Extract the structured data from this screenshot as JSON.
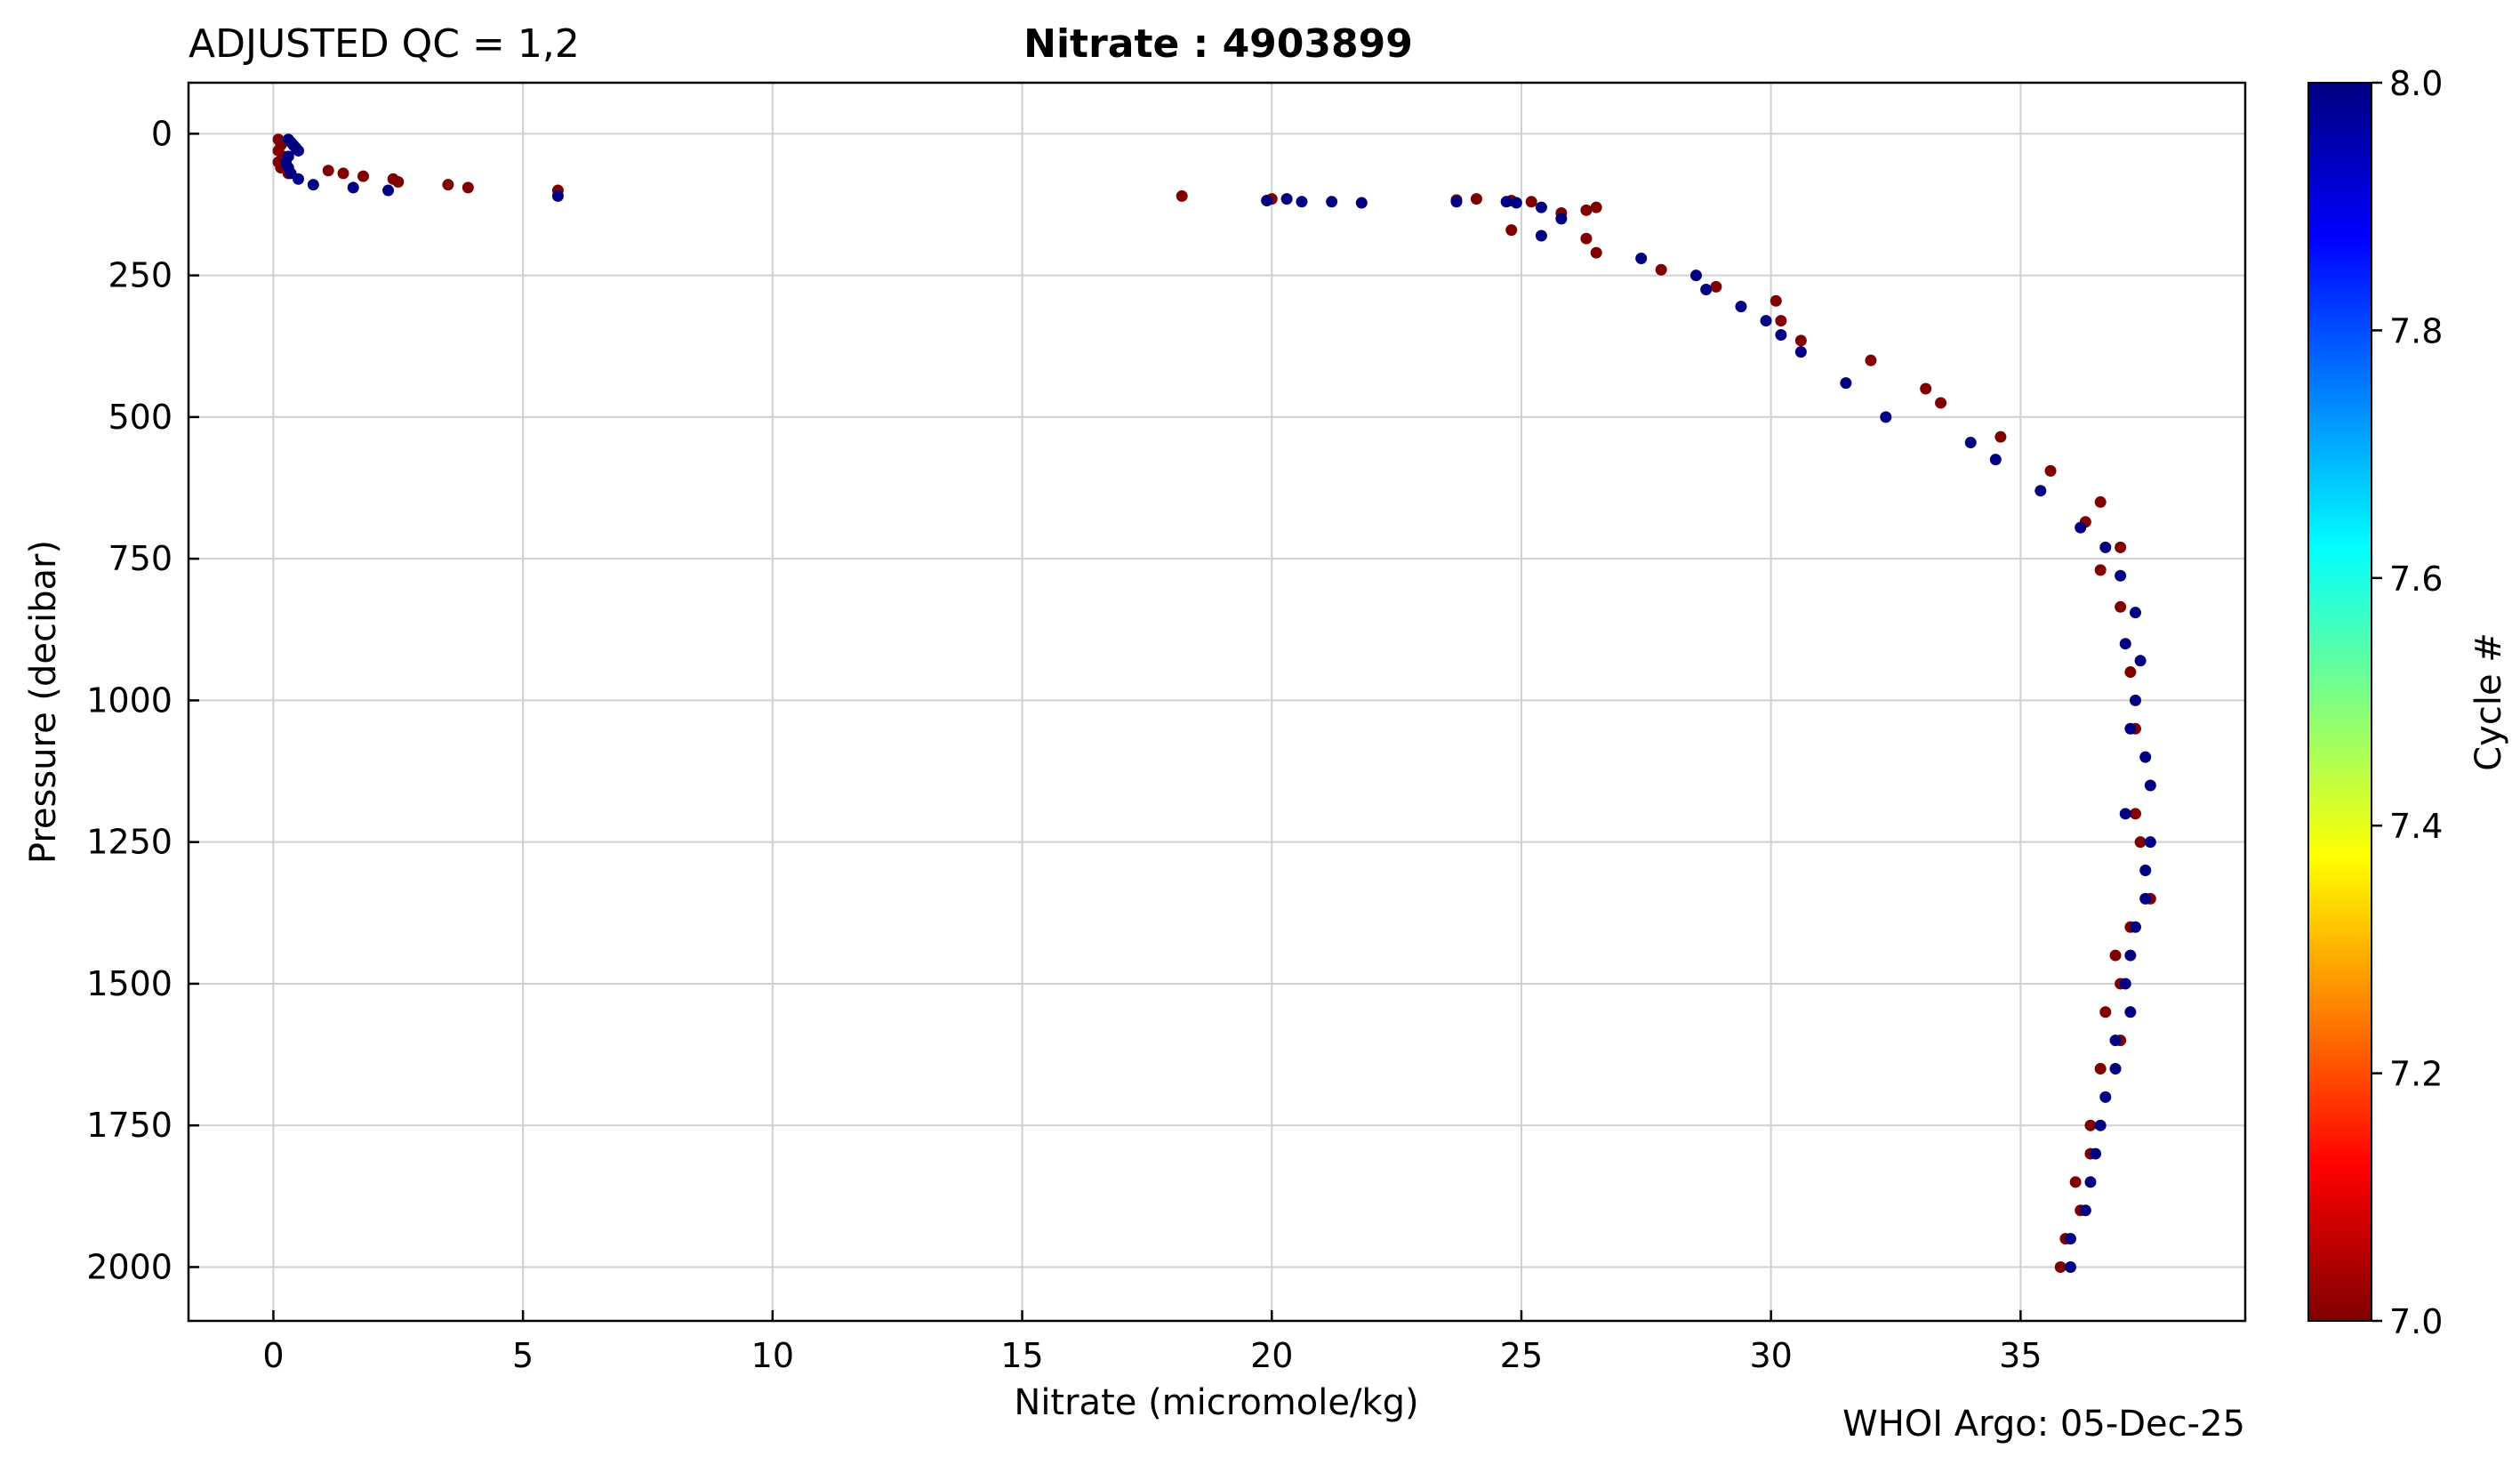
{
  "chart_data": {
    "type": "scatter",
    "title_left": "ADJUSTED QC = 1,2",
    "title_center": "Nitrate : 4903899",
    "xlabel": "Nitrate  (micromole/kg)",
    "ylabel": "Pressure  (decibar)",
    "footer": "WHOI Argo: 05-Dec-25",
    "xlim": [
      -1.7,
      39.5
    ],
    "ylim": [
      2095,
      -90
    ],
    "y_inverted": true,
    "grid": true,
    "xticks": [
      0,
      5,
      10,
      15,
      20,
      25,
      30,
      35
    ],
    "yticks": [
      0,
      250,
      500,
      750,
      1000,
      1250,
      1500,
      1750,
      2000
    ],
    "colorbar": {
      "label": "Cycle #",
      "range": [
        7.0,
        8.0
      ],
      "ticks": [
        "7.0",
        "7.2",
        "7.4",
        "7.6",
        "7.8",
        "8.0"
      ],
      "colormap": "jet",
      "cmap_colors": [
        "#800000",
        "#ff0000",
        "#ff8000",
        "#ffff00",
        "#80ff80",
        "#00ffff",
        "#0080ff",
        "#0000ff",
        "#000080"
      ]
    },
    "series": [
      {
        "cycle": 7,
        "color": "#800000",
        "points": [
          [
            0.1,
            10
          ],
          [
            0.15,
            20
          ],
          [
            0.1,
            30
          ],
          [
            0.2,
            40
          ],
          [
            0.1,
            50
          ],
          [
            0.15,
            60
          ],
          [
            0.3,
            70
          ],
          [
            1.1,
            65
          ],
          [
            1.4,
            70
          ],
          [
            1.8,
            75
          ],
          [
            2.4,
            80
          ],
          [
            2.5,
            85
          ],
          [
            3.5,
            90
          ],
          [
            3.9,
            95
          ],
          [
            5.7,
            100
          ],
          [
            18.2,
            110
          ],
          [
            20.0,
            115
          ],
          [
            24.1,
            115
          ],
          [
            23.7,
            117
          ],
          [
            24.8,
            118
          ],
          [
            25.2,
            120
          ],
          [
            26.5,
            130
          ],
          [
            26.3,
            135
          ],
          [
            25.8,
            140
          ],
          [
            24.8,
            170
          ],
          [
            26.3,
            185
          ],
          [
            26.5,
            210
          ],
          [
            27.8,
            240
          ],
          [
            28.9,
            270
          ],
          [
            30.1,
            295
          ],
          [
            30.2,
            330
          ],
          [
            30.6,
            365
          ],
          [
            32.0,
            400
          ],
          [
            33.1,
            450
          ],
          [
            33.4,
            475
          ],
          [
            34.6,
            535
          ],
          [
            35.6,
            595
          ],
          [
            36.6,
            650
          ],
          [
            36.3,
            685
          ],
          [
            37.0,
            730
          ],
          [
            36.6,
            770
          ],
          [
            37.0,
            835
          ],
          [
            37.2,
            950
          ],
          [
            37.3,
            1050
          ],
          [
            37.3,
            1200
          ],
          [
            37.4,
            1250
          ],
          [
            37.6,
            1350
          ],
          [
            37.2,
            1400
          ],
          [
            36.9,
            1450
          ],
          [
            37.0,
            1500
          ],
          [
            36.7,
            1550
          ],
          [
            37.0,
            1600
          ],
          [
            36.6,
            1650
          ],
          [
            36.4,
            1750
          ],
          [
            36.4,
            1800
          ],
          [
            36.1,
            1850
          ],
          [
            36.2,
            1900
          ],
          [
            35.9,
            1950
          ],
          [
            35.8,
            2000
          ]
        ]
      },
      {
        "cycle": 8,
        "color": "#000080",
        "points": [
          [
            0.3,
            10
          ],
          [
            0.35,
            15
          ],
          [
            0.4,
            20
          ],
          [
            0.45,
            25
          ],
          [
            0.5,
            30
          ],
          [
            0.3,
            40
          ],
          [
            0.25,
            50
          ],
          [
            0.3,
            60
          ],
          [
            0.35,
            70
          ],
          [
            0.5,
            80
          ],
          [
            0.8,
            90
          ],
          [
            1.6,
            95
          ],
          [
            2.3,
            100
          ],
          [
            5.7,
            110
          ],
          [
            19.9,
            118
          ],
          [
            20.3,
            115
          ],
          [
            20.6,
            120
          ],
          [
            21.2,
            120
          ],
          [
            21.8,
            122
          ],
          [
            23.7,
            120
          ],
          [
            24.7,
            120
          ],
          [
            24.9,
            122
          ],
          [
            25.4,
            130
          ],
          [
            25.8,
            150
          ],
          [
            25.4,
            180
          ],
          [
            27.4,
            220
          ],
          [
            28.5,
            250
          ],
          [
            28.7,
            275
          ],
          [
            29.4,
            305
          ],
          [
            29.9,
            330
          ],
          [
            30.2,
            355
          ],
          [
            30.6,
            385
          ],
          [
            31.5,
            440
          ],
          [
            32.3,
            500
          ],
          [
            34.0,
            545
          ],
          [
            34.5,
            575
          ],
          [
            35.4,
            630
          ],
          [
            36.2,
            695
          ],
          [
            36.7,
            730
          ],
          [
            37.0,
            780
          ],
          [
            37.3,
            845
          ],
          [
            37.1,
            900
          ],
          [
            37.4,
            930
          ],
          [
            37.3,
            1000
          ],
          [
            37.2,
            1050
          ],
          [
            37.5,
            1100
          ],
          [
            37.6,
            1150
          ],
          [
            37.1,
            1200
          ],
          [
            37.6,
            1250
          ],
          [
            37.5,
            1300
          ],
          [
            37.5,
            1350
          ],
          [
            37.3,
            1400
          ],
          [
            37.2,
            1450
          ],
          [
            37.1,
            1500
          ],
          [
            37.2,
            1550
          ],
          [
            36.9,
            1600
          ],
          [
            36.9,
            1650
          ],
          [
            36.7,
            1700
          ],
          [
            36.6,
            1750
          ],
          [
            36.5,
            1800
          ],
          [
            36.4,
            1850
          ],
          [
            36.3,
            1900
          ],
          [
            36.0,
            1950
          ],
          [
            36.0,
            2000
          ]
        ]
      }
    ]
  }
}
